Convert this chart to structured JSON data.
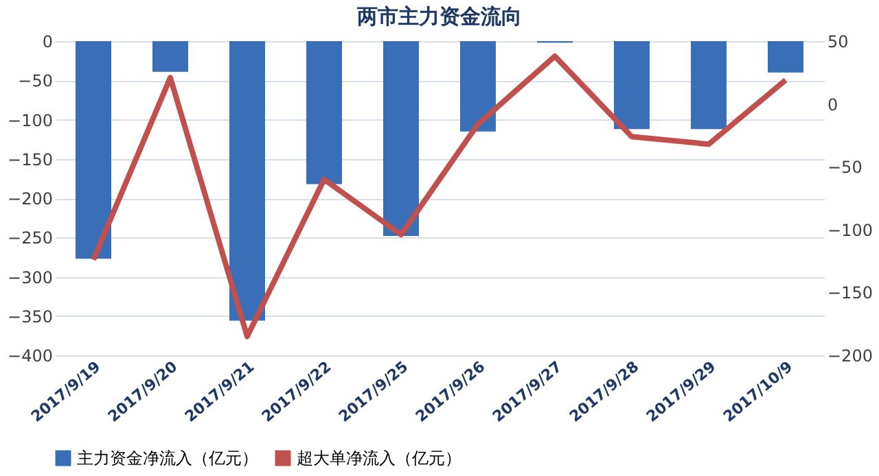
{
  "chart_data": {
    "type": "bar",
    "title": "两市主力资金流向",
    "categories": [
      "2017/9/19",
      "2017/9/20",
      "2017/9/21",
      "2017/9/22",
      "2017/9/25",
      "2017/9/26",
      "2017/9/27",
      "2017/9/28",
      "2017/9/29",
      "2017/10/9"
    ],
    "series": [
      {
        "name": "主力资金净流入（亿元）",
        "color": "#3a6fb8",
        "values": [
          -277,
          -39,
          -356,
          -182,
          -248,
          -115,
          -2,
          -112,
          -112,
          -40
        ]
      },
      {
        "name": "超大单净流入（亿元）",
        "type": "line",
        "axis": "y2",
        "color": "#c0504d",
        "values": [
          -124,
          21,
          -185,
          -60,
          -104,
          -16,
          38,
          -26,
          -32,
          19
        ]
      }
    ],
    "ylim": [
      -400,
      0
    ],
    "yticks": [
      -400,
      -350,
      -300,
      -250,
      -200,
      -150,
      -100,
      -50,
      0
    ],
    "y2lim": [
      -200,
      50
    ],
    "y2ticks": [
      -200,
      -150,
      -100,
      -50,
      0,
      50
    ],
    "grid": "y",
    "legend": "bottom",
    "marker": "none",
    "line_style": "solid"
  }
}
